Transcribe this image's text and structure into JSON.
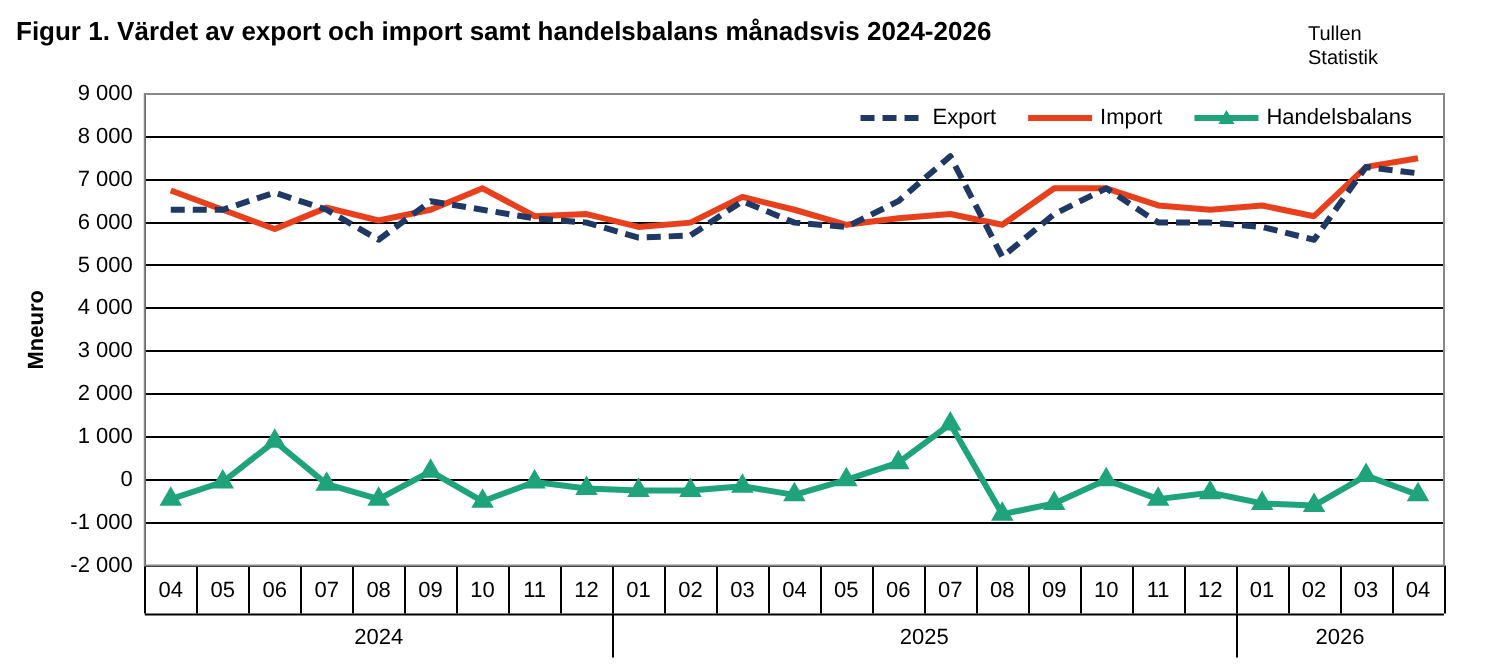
{
  "chart_data": {
    "type": "line",
    "title": "Figur 1. Värdet av export och import samt handelsbalans månadsvis 2024-2026",
    "ylabel": "Mneuro",
    "categories": [
      "04",
      "05",
      "06",
      "07",
      "08",
      "09",
      "10",
      "11",
      "12",
      "01",
      "02",
      "03",
      "04",
      "05",
      "06",
      "07",
      "08",
      "09",
      "10",
      "11",
      "12",
      "01",
      "02",
      "03",
      "04"
    ],
    "series": [
      {
        "name": "Export",
        "color": "#1f3864",
        "line_style": "dashed",
        "marker": "none",
        "values": [
          6300,
          6300,
          6700,
          6300,
          5600,
          6500,
          6300,
          6100,
          6000,
          5650,
          5700,
          6500,
          6000,
          5900,
          6500,
          7550,
          5200,
          6200,
          6800,
          6000,
          6000,
          5900,
          5600,
          7300,
          7150
        ]
      },
      {
        "name": "Import",
        "color": "#e8401c",
        "line_style": "solid",
        "marker": "none",
        "values": [
          6750,
          6300,
          5850,
          6350,
          6050,
          6300,
          6800,
          6150,
          6200,
          5900,
          6000,
          6600,
          6300,
          5950,
          6100,
          6200,
          5950,
          6800,
          6800,
          6400,
          6300,
          6400,
          6150,
          7300,
          7500
        ]
      },
      {
        "name": "Handelsbalans",
        "color": "#1fa37a",
        "line_style": "solid",
        "marker": "triangle",
        "values": [
          -450,
          -50,
          900,
          -100,
          -450,
          200,
          -500,
          -50,
          -200,
          -250,
          -250,
          -150,
          -350,
          0,
          400,
          1300,
          -800,
          -550,
          0,
          -450,
          -300,
          -550,
          -600,
          100,
          -350
        ]
      }
    ],
    "ylim": [
      -2000,
      9000
    ],
    "yticks": [
      {
        "value": -2000,
        "label": "-2 000"
      },
      {
        "value": -1000,
        "label": "-1 000"
      },
      0,
      {
        "value": 1000,
        "label": "1 000"
      },
      {
        "value": 2000,
        "label": "2 000"
      },
      {
        "value": 3000,
        "label": "3 000"
      },
      {
        "value": 4000,
        "label": "4 000"
      },
      {
        "value": 5000,
        "label": "5 000"
      },
      {
        "value": 6000,
        "label": "6 000"
      },
      {
        "value": 7000,
        "label": "7 000"
      },
      {
        "value": 8000,
        "label": "8 000"
      },
      {
        "value": 9000,
        "label": "9 000"
      }
    ],
    "grid": "y",
    "legend": "top right",
    "annotations": [
      "2024",
      "2025",
      "2026",
      "Tullen\nStatistik"
    ]
  }
}
